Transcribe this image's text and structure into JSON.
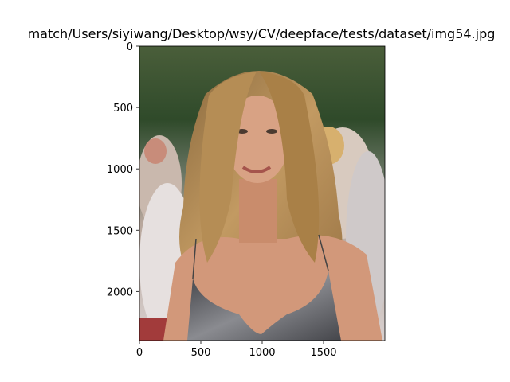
{
  "window": {
    "title": "match/Users/siyiwang/Desktop/wsy/CV/deepface/tests/dataset/img54.jpg"
  },
  "image": {
    "description_icon": "portrait-photo-icon",
    "colors": {
      "background_trees": "#2f4a2a",
      "crowd": "#b8a79c",
      "hair": "#b58d55",
      "skin": "#d59b78",
      "dress": "#55565a"
    }
  },
  "chart_data": {
    "type": "image",
    "title": "match/Users/siyiwang/Desktop/wsy/CV/deepface/tests/dataset/img54.jpg",
    "xlim": [
      0,
      2000
    ],
    "ylim": [
      2400,
      0
    ],
    "x_ticks": [
      0,
      500,
      1000,
      1500
    ],
    "y_ticks": [
      0,
      500,
      1000,
      1500,
      2000
    ],
    "x_tick_labels": [
      "0",
      "500",
      "1000",
      "1500"
    ],
    "y_tick_labels": [
      "0",
      "500",
      "1000",
      "1500",
      "2000"
    ],
    "grid": false,
    "legend": "none"
  }
}
